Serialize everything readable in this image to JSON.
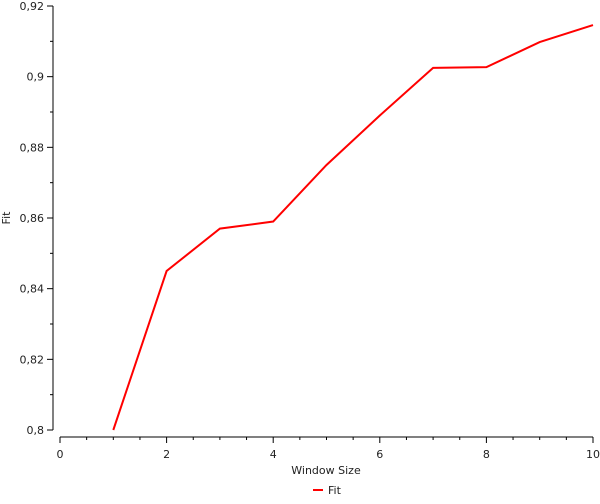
{
  "chart_data": {
    "type": "line",
    "xlabel": "Window Size",
    "ylabel": "Fit",
    "xlim": [
      0,
      10
    ],
    "ylim": [
      0.8,
      0.92
    ],
    "xticks": [
      "0",
      "2",
      "4",
      "6",
      "8",
      "10"
    ],
    "yticks": [
      "0,8",
      "0,82",
      "0,84",
      "0,86",
      "0,88",
      "0,9",
      "0,92"
    ],
    "grid": false,
    "legend": "bottom",
    "series": [
      {
        "name": "Fit",
        "color": "#ff0000",
        "x": [
          1,
          2,
          3,
          4,
          5,
          6,
          7,
          8,
          9,
          10
        ],
        "y": [
          0.8,
          0.845,
          0.857,
          0.859,
          0.875,
          0.889,
          0.9025,
          0.9027,
          0.9098,
          0.9146
        ]
      }
    ]
  }
}
